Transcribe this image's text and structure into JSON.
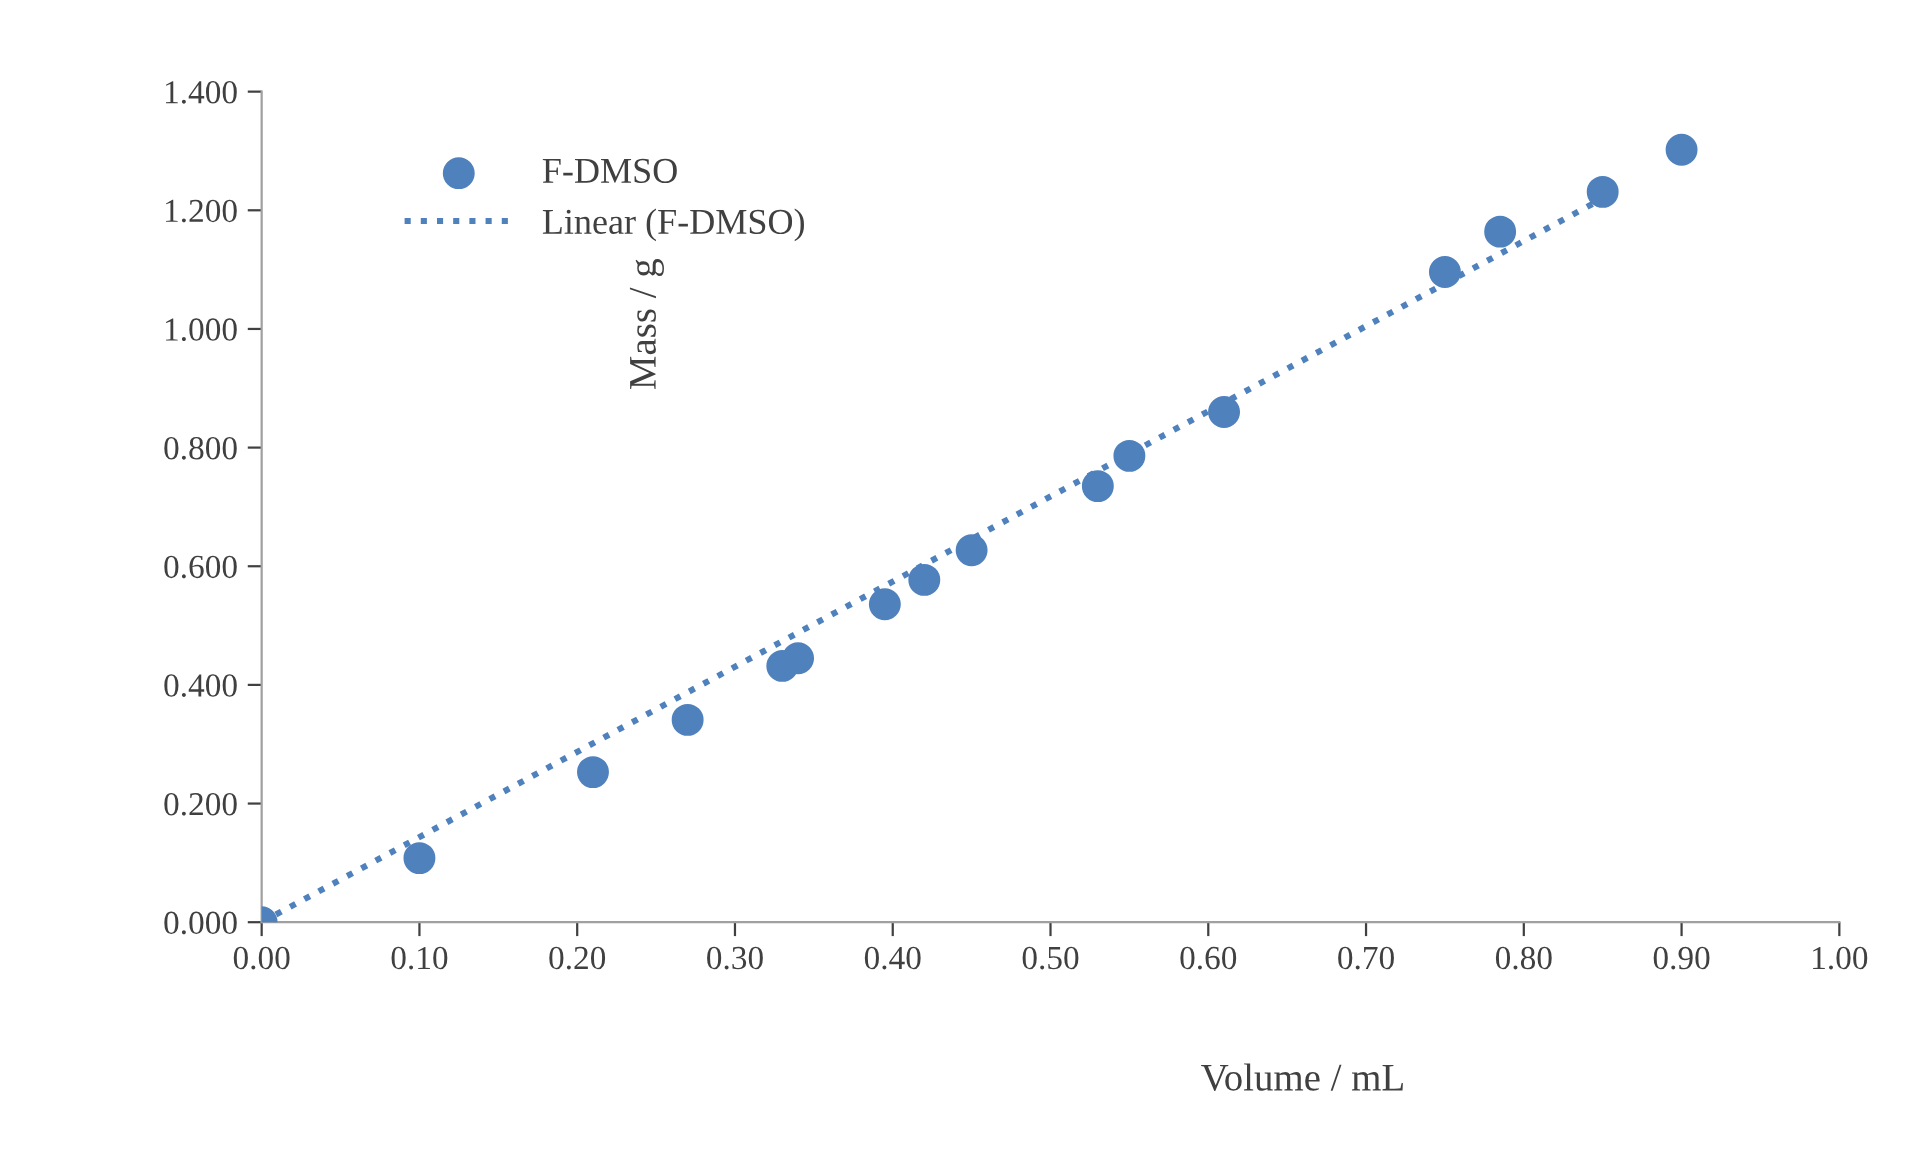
{
  "chart_data": {
    "type": "scatter",
    "xlabel": "Volume / mL",
    "ylabel": "Mass / g",
    "series": [
      {
        "name": "F-DMSO",
        "color": "#4f81bd",
        "marker": "circle",
        "x": [
          0.0,
          0.1,
          0.21,
          0.27,
          0.33,
          0.34,
          0.395,
          0.42,
          0.45,
          0.53,
          0.55,
          0.61,
          0.75,
          0.785,
          0.85,
          0.9
        ],
        "values": [
          0.0,
          0.108,
          0.253,
          0.341,
          0.432,
          0.445,
          0.536,
          0.577,
          0.627,
          0.735,
          0.786,
          0.86,
          1.096,
          1.164,
          1.231,
          1.302
        ]
      },
      {
        "name": "Linear (F-DMSO)",
        "type": "line",
        "color": "#4f81bd",
        "line_style": "dotted",
        "marker": "none",
        "x": [
          0.0,
          0.85
        ],
        "values": [
          0.0,
          1.22
        ]
      }
    ],
    "xlim": [
      0,
      1.0
    ],
    "xticks": [
      {
        "value": 0,
        "label": "0.00"
      },
      {
        "value": 0.1,
        "label": "0.10"
      },
      {
        "value": 0.2,
        "label": "0.20"
      },
      {
        "value": 0.3,
        "label": "0.30"
      },
      {
        "value": 0.4,
        "label": "0.40"
      },
      {
        "value": 0.5,
        "label": "0.50"
      },
      {
        "value": 0.6,
        "label": "0.60"
      },
      {
        "value": 0.7,
        "label": "0.70"
      },
      {
        "value": 0.8,
        "label": "0.80"
      },
      {
        "value": 0.9,
        "label": "0.90"
      },
      {
        "value": 1.0,
        "label": "1.00"
      }
    ],
    "ylim": [
      0,
      1.4
    ],
    "yticks": [
      {
        "value": 0,
        "label": "0.000"
      },
      {
        "value": 0.2,
        "label": "0.200"
      },
      {
        "value": 0.4,
        "label": "0.400"
      },
      {
        "value": 0.6,
        "label": "0.600"
      },
      {
        "value": 0.8,
        "label": "0.800"
      },
      {
        "value": 1.0,
        "label": "1.000"
      },
      {
        "value": 1.2,
        "label": "1.200"
      },
      {
        "value": 1.4,
        "label": "1.400"
      }
    ],
    "grid": false,
    "legend": "top left"
  }
}
